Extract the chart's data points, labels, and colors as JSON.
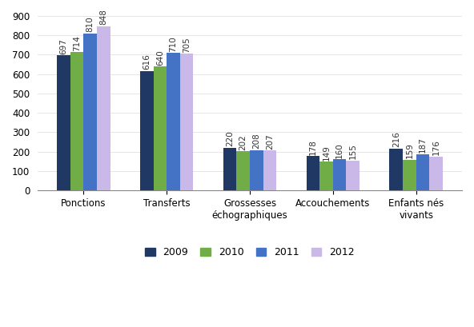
{
  "categories": [
    "Ponctions",
    "Transferts",
    "Grossesses\néchographiques",
    "Accouchements",
    "Enfants nés\nvivants"
  ],
  "years": [
    "2009",
    "2010",
    "2011",
    "2012"
  ],
  "values": {
    "2009": [
      697,
      616,
      220,
      178,
      216
    ],
    "2010": [
      714,
      640,
      202,
      149,
      159
    ],
    "2011": [
      810,
      710,
      208,
      160,
      187
    ],
    "2012": [
      848,
      705,
      207,
      155,
      176
    ]
  },
  "colors": {
    "2009": "#1F3864",
    "2010": "#70AD47",
    "2011": "#4472C4",
    "2012": "#C9B8E8"
  },
  "ylim": [
    0,
    900
  ],
  "yticks": [
    0,
    100,
    200,
    300,
    400,
    500,
    600,
    700,
    800,
    900
  ],
  "bar_width": 0.16,
  "label_fontsize": 7.5,
  "tick_fontsize": 8.5,
  "legend_fontsize": 9,
  "background_color": "#FFFFFF"
}
